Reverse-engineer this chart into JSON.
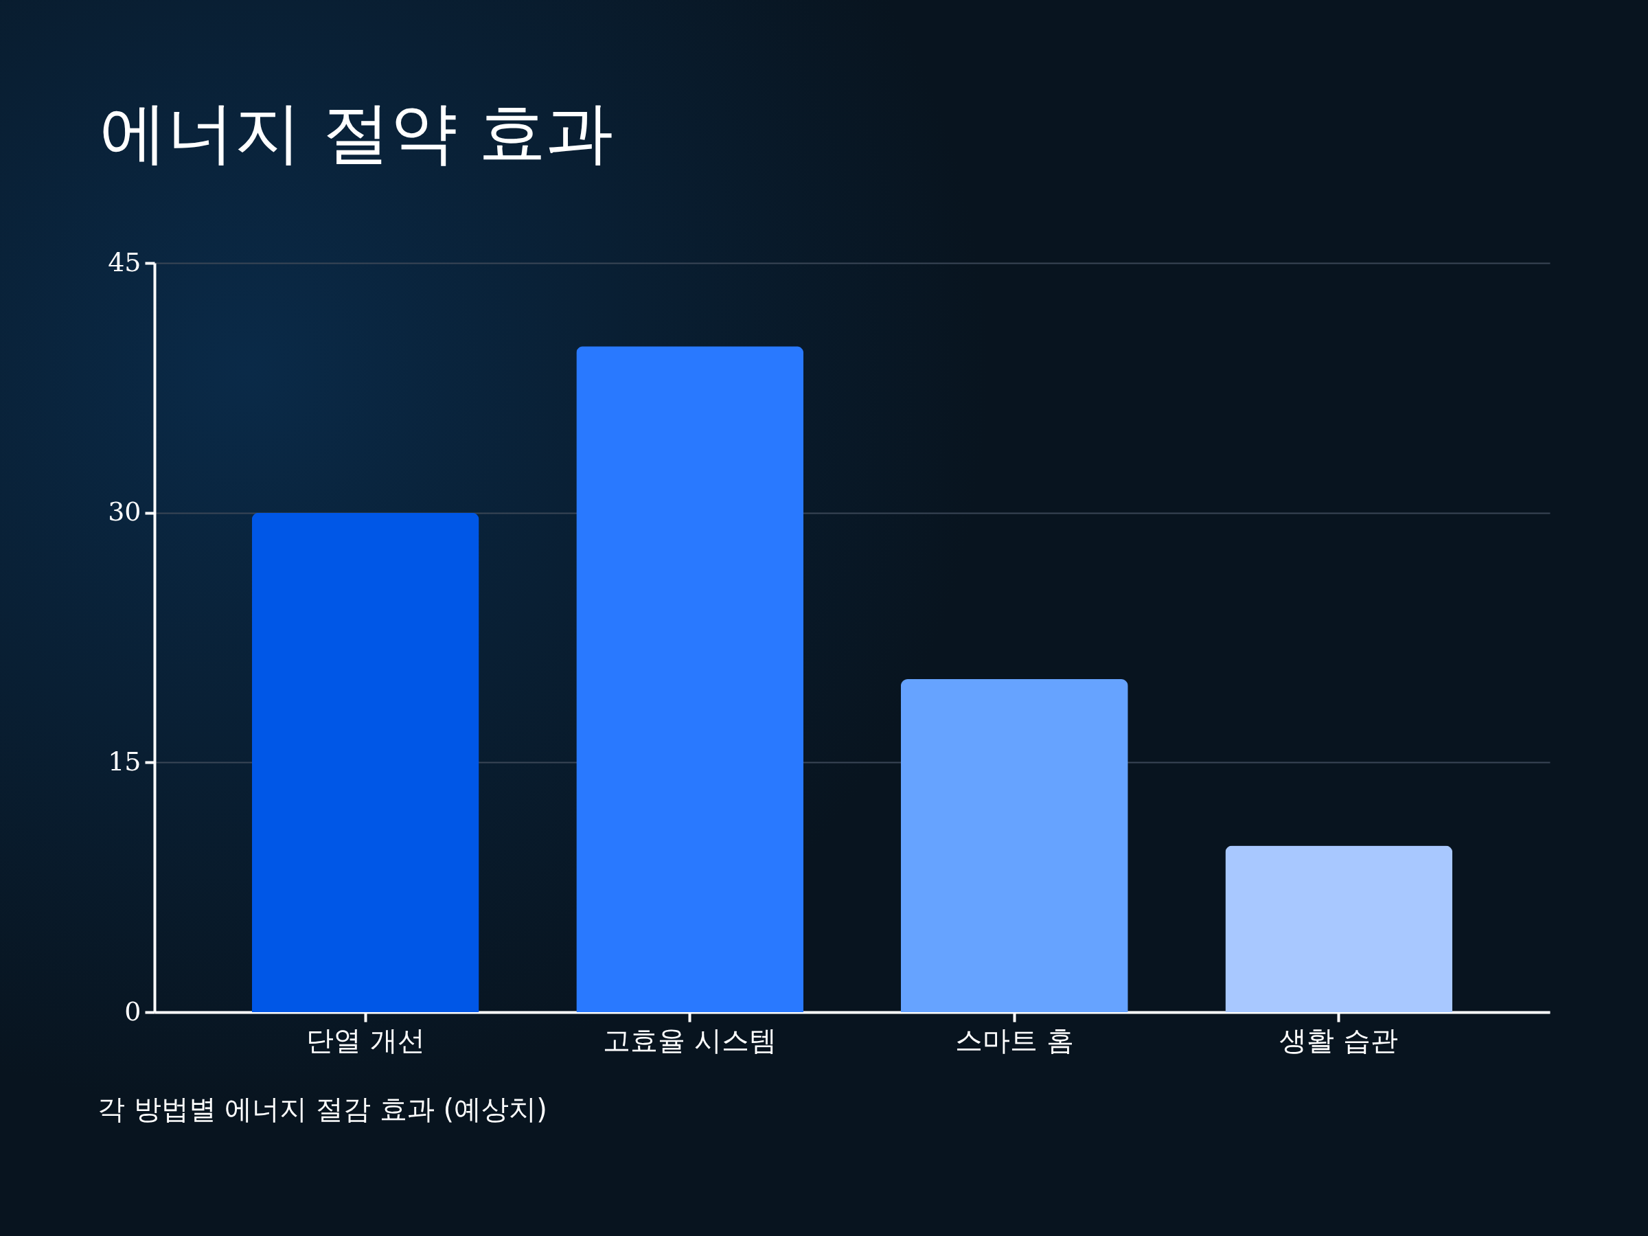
{
  "chart_data": {
    "type": "bar",
    "title": "에너지 절약 효과",
    "categories": [
      "단열 개선",
      "고효율 시스템",
      "스마트 홈",
      "생활 습관"
    ],
    "values": [
      30,
      40,
      20,
      10
    ],
    "colors": [
      "#0057e7",
      "#2979ff",
      "#66a3ff",
      "#a8c8ff"
    ],
    "ylim": [
      0,
      45
    ],
    "yticks": [
      0,
      15,
      30,
      45
    ],
    "grid": "y",
    "annotations": [
      "각 방법별 에너지 절감 효과 (예상치)"
    ]
  }
}
